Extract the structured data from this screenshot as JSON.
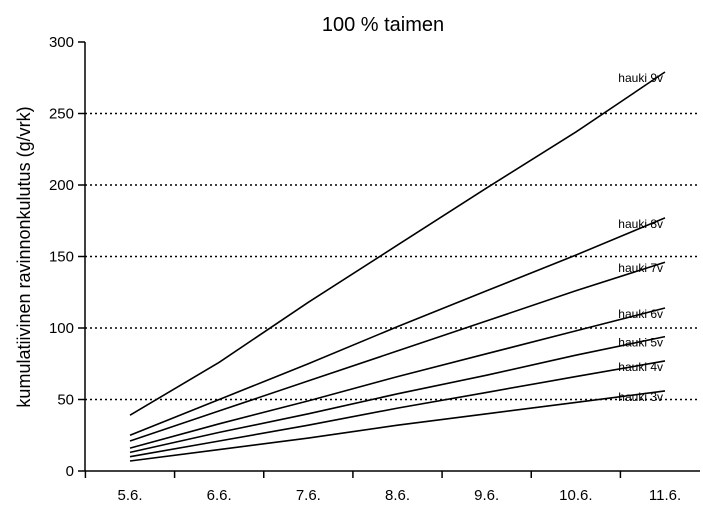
{
  "chart_data": {
    "type": "line",
    "title": "100 % taimen",
    "xlabel": "",
    "ylabel": "kumulatiivinen ravinnonkulutus (g/vrk)",
    "categories": [
      "5.6.",
      "6.6.",
      "7.6.",
      "8.6.",
      "9.6.",
      "10.6.",
      "11.6."
    ],
    "ylim": [
      0,
      300
    ],
    "yticks": [
      0,
      50,
      100,
      150,
      200,
      250,
      300
    ],
    "grid": "dotted horizontal at 50, 100, 150, 200, 250",
    "series": [
      {
        "name": "hauki 9v",
        "values": [
          39,
          76,
          118,
          158,
          198,
          237,
          279
        ]
      },
      {
        "name": "hauki 8v",
        "values": [
          25,
          50,
          75,
          101,
          126,
          151,
          177
        ]
      },
      {
        "name": "hauki 7v",
        "values": [
          21,
          42,
          63,
          84,
          105,
          126,
          146
        ]
      },
      {
        "name": "hauki 6v",
        "values": [
          16,
          33,
          49,
          66,
          82,
          98,
          114
        ]
      },
      {
        "name": "hauki 5v",
        "values": [
          13,
          27,
          40,
          54,
          67,
          81,
          94
        ]
      },
      {
        "name": "hauki 4v",
        "values": [
          10,
          21,
          32,
          44,
          55,
          66,
          77
        ]
      },
      {
        "name": "hauki 3v",
        "values": [
          7,
          15,
          23,
          32,
          40,
          48,
          56
        ]
      }
    ]
  }
}
